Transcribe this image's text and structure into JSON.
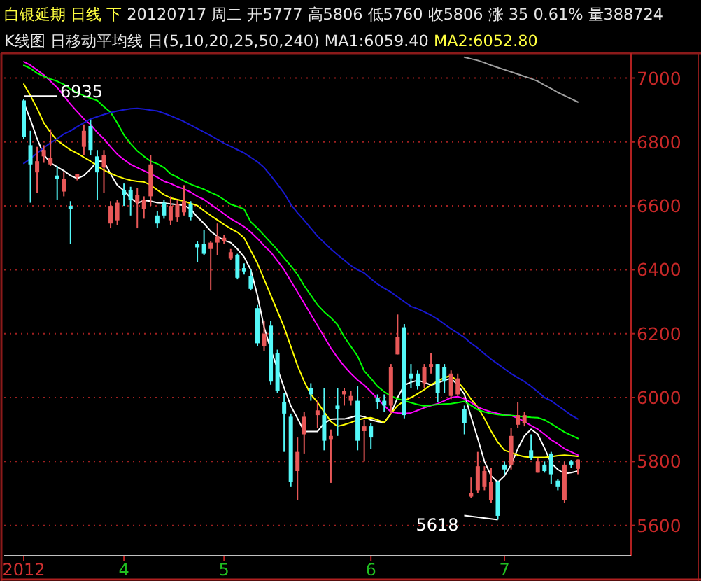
{
  "chart_data": {
    "type": "candlestick",
    "title": "白银延期 日线 下",
    "subtitle": "K线图 日移动平均线 日(5,10,20,25,50,240)",
    "annotations": [
      "20120717 周二 开5777 高5806 低5760 收5806 涨 35 0.61% 量388724",
      "MA1:6059.40",
      "MA2:6052.80",
      {
        "text": "6935",
        "x": "2012",
        "y": 6935
      },
      "5618"
    ],
    "categories": [
      "2012",
      null,
      null,
      null,
      null,
      null,
      null,
      null,
      null,
      null,
      null,
      null,
      null,
      null,
      null,
      "4",
      null,
      null,
      null,
      null,
      null,
      null,
      null,
      null,
      null,
      null,
      null,
      null,
      null,
      null,
      "5",
      null,
      null,
      null,
      null,
      null,
      null,
      null,
      null,
      null,
      null,
      null,
      null,
      null,
      null,
      null,
      null,
      null,
      null,
      null,
      null,
      null,
      "6",
      null,
      null,
      null,
      null,
      null,
      null,
      null,
      null,
      null,
      null,
      null,
      null,
      null,
      null,
      null,
      null,
      null,
      null,
      null,
      "7",
      null,
      null,
      null,
      null,
      null,
      null,
      null,
      null,
      null,
      null,
      null
    ],
    "ohlc": [
      [
        6930,
        6935,
        6810,
        6815
      ],
      [
        6790,
        6835,
        6610,
        6730
      ],
      [
        6705,
        6785,
        6640,
        6740
      ],
      [
        6755,
        6790,
        6735,
        6775
      ],
      [
        6730,
        6840,
        6725,
        6750
      ],
      [
        6695,
        6725,
        6620,
        6685
      ],
      [
        6645,
        6705,
        6630,
        6685
      ],
      [
        6600,
        6615,
        6480,
        6590
      ],
      [
        6690,
        6700,
        6680,
        6700
      ],
      [
        6785,
        6855,
        6760,
        6835
      ],
      [
        6850,
        6870,
        6760,
        6775
      ],
      [
        6755,
        6775,
        6620,
        6705
      ],
      [
        6720,
        6775,
        6640,
        6760
      ],
      [
        6545,
        6615,
        6530,
        6600
      ],
      [
        6555,
        6620,
        6540,
        6610
      ],
      [
        6650,
        6670,
        6600,
        6635
      ],
      [
        6650,
        6660,
        6570,
        6620
      ],
      [
        6610,
        6655,
        6530,
        6635
      ],
      [
        6590,
        6630,
        6560,
        6620
      ],
      [
        6630,
        6760,
        6600,
        6730
      ],
      [
        6570,
        6585,
        6530,
        6545
      ],
      [
        6610,
        6620,
        6560,
        6570
      ],
      [
        6555,
        6630,
        6540,
        6600
      ],
      [
        6565,
        6620,
        6550,
        6605
      ],
      [
        6580,
        6665,
        6570,
        6615
      ],
      [
        6605,
        6615,
        6555,
        6565
      ],
      [
        6480,
        6490,
        6425,
        6470
      ],
      [
        6480,
        6525,
        6445,
        6450
      ],
      [
        6465,
        6490,
        6335,
        6485
      ],
      [
        6485,
        6545,
        6445,
        6505
      ],
      [
        6490,
        6510,
        6480,
        6500
      ],
      [
        6435,
        6465,
        6430,
        6455
      ],
      [
        6445,
        6450,
        6370,
        6375
      ],
      [
        6405,
        6420,
        6385,
        6395
      ],
      [
        6380,
        6400,
        6335,
        6340
      ],
      [
        6280,
        6290,
        6160,
        6170
      ],
      [
        6160,
        6240,
        6145,
        6200
      ],
      [
        6225,
        6240,
        6040,
        6050
      ],
      [
        6140,
        6150,
        6015,
        6020
      ],
      [
        5985,
        6015,
        5830,
        5950
      ],
      [
        5940,
        5950,
        5720,
        5735
      ],
      [
        5770,
        5875,
        5680,
        5830
      ],
      [
        5885,
        5955,
        5825,
        5940
      ],
      [
        6030,
        6045,
        5990,
        6010
      ],
      [
        5945,
        5990,
        5905,
        5960
      ],
      [
        5945,
        6030,
        5835,
        5865
      ],
      [
        5870,
        5900,
        5733,
        5880
      ],
      [
        5975,
        6030,
        5880,
        5965
      ],
      [
        6010,
        6030,
        5975,
        6020
      ],
      [
        5990,
        6020,
        5975,
        6005
      ],
      [
        5990,
        6035,
        5835,
        5865
      ],
      [
        5895,
        5930,
        5800,
        5910
      ],
      [
        5910,
        5920,
        5840,
        5875
      ],
      [
        6000,
        6010,
        5965,
        5985
      ],
      [
        5990,
        6010,
        5955,
        5975
      ],
      [
        5975,
        6105,
        5950,
        6095
      ],
      [
        6135,
        6260,
        6135,
        6190
      ],
      [
        6220,
        6230,
        5935,
        5945
      ],
      [
        6075,
        6105,
        6030,
        6060
      ],
      [
        6075,
        6085,
        6025,
        6035
      ],
      [
        6045,
        6105,
        6030,
        6095
      ],
      [
        6095,
        6140,
        6075,
        6105
      ],
      [
        6105,
        6105,
        5985,
        6015
      ],
      [
        6095,
        6105,
        6015,
        6050
      ],
      [
        6005,
        6085,
        5995,
        6075
      ],
      [
        6010,
        6075,
        6005,
        6060
      ],
      [
        5965,
        5975,
        5885,
        5920
      ],
      [
        5690,
        5750,
        5685,
        5700
      ],
      [
        5710,
        5830,
        5700,
        5785
      ],
      [
        5720,
        5785,
        5710,
        5770
      ],
      [
        5680,
        5780,
        5670,
        5735
      ],
      [
        5735,
        5740,
        5618,
        5630
      ],
      [
        5790,
        5800,
        5760,
        5775
      ],
      [
        5790,
        5905,
        5775,
        5880
      ],
      [
        5915,
        5985,
        5905,
        5945
      ],
      [
        5920,
        5955,
        5910,
        5945
      ],
      [
        5835,
        5885,
        5805,
        5810
      ],
      [
        5765,
        5810,
        5765,
        5800
      ],
      [
        5790,
        5800,
        5765,
        5770
      ],
      [
        5825,
        5830,
        5730,
        5760
      ],
      [
        5740,
        5745,
        5710,
        5720
      ],
      [
        5680,
        5800,
        5670,
        5790
      ],
      [
        5800,
        5805,
        5780,
        5790
      ],
      [
        5777,
        5806,
        5760,
        5806
      ]
    ],
    "series": [
      {
        "type": "line",
        "color": "#ffffff",
        "values": [
          6923,
          6870,
          6810,
          6760,
          6735,
          6722,
          6710,
          6695,
          6686,
          6695,
          6715,
          6740,
          6740,
          6700,
          6665,
          6648,
          6625,
          6609,
          6617,
          6615,
          6610,
          6609,
          6606,
          6604,
          6602,
          6590,
          6565,
          6545,
          6521,
          6505,
          6492,
          6485,
          6465,
          6440,
          6400,
          6320,
          6220,
          6150,
          6090,
          6030,
          5974,
          5935,
          5894,
          5894,
          5894,
          5920,
          5932,
          5933,
          5933,
          5938,
          5944,
          5940,
          5930,
          5925,
          5922,
          5950,
          6000,
          6039,
          6048,
          6054,
          6048,
          6039,
          6046,
          6054,
          6060,
          6040,
          6010,
          5940,
          5872,
          5800,
          5755,
          5735,
          5755,
          5790,
          5840,
          5880,
          5901,
          5885,
          5842,
          5795,
          5775,
          5762,
          5765,
          5770
        ]
      },
      {
        "type": "line",
        "color": "#ffff00",
        "values": [
          6981,
          6945,
          6905,
          6860,
          6830,
          6805,
          6790,
          6775,
          6765,
          6752,
          6740,
          6725,
          6712,
          6702,
          6693,
          6686,
          6680,
          6677,
          6675,
          6665,
          6650,
          6635,
          6625,
          6620,
          6615,
          6608,
          6601,
          6585,
          6570,
          6556,
          6542,
          6529,
          6518,
          6500,
          6460,
          6420,
          6370,
          6320,
          6270,
          6220,
          6160,
          6100,
          6050,
          6010,
          5985,
          5955,
          5925,
          5910,
          5915,
          5922,
          5930,
          5935,
          5937,
          5930,
          5922,
          5950,
          5975,
          5990,
          6000,
          6012,
          6025,
          6040,
          6052,
          6062,
          6069,
          6050,
          6025,
          5995,
          5970,
          5935,
          5895,
          5860,
          5835,
          5828,
          5820,
          5815,
          5813,
          5813,
          5813,
          5815,
          5818,
          5820,
          5818,
          5816
        ]
      },
      {
        "type": "line",
        "color": "#ff00ff",
        "values": [
          7051,
          7040,
          7025,
          7010,
          6990,
          6970,
          6945,
          6918,
          6895,
          6872,
          6855,
          6830,
          6810,
          6785,
          6762,
          6745,
          6730,
          6720,
          6710,
          6700,
          6690,
          6677,
          6670,
          6660,
          6653,
          6643,
          6630,
          6620,
          6605,
          6590,
          6575,
          6560,
          6548,
          6535,
          6518,
          6498,
          6475,
          6455,
          6428,
          6400,
          6365,
          6330,
          6295,
          6260,
          6225,
          6190,
          6155,
          6125,
          6098,
          6075,
          6055,
          6039,
          6018,
          5996,
          5975,
          5955,
          5952,
          5950,
          5952,
          5960,
          5968,
          5975,
          5981,
          5990,
          6000,
          6003,
          5996,
          5985,
          5970,
          5962,
          5955,
          5950,
          5946,
          5944,
          5935,
          5925,
          5912,
          5901,
          5885,
          5868,
          5855,
          5840,
          5830,
          5820
        ]
      },
      {
        "type": "line",
        "color": "#00ff00",
        "values": [
          7040,
          7030,
          7015,
          7005,
          6997,
          6990,
          6980,
          6965,
          6954,
          6945,
          6937,
          6930,
          6910,
          6893,
          6860,
          6822,
          6795,
          6772,
          6755,
          6740,
          6732,
          6720,
          6700,
          6690,
          6678,
          6668,
          6660,
          6652,
          6642,
          6633,
          6620,
          6605,
          6598,
          6590,
          6550,
          6530,
          6508,
          6485,
          6462,
          6437,
          6412,
          6385,
          6350,
          6320,
          6290,
          6268,
          6250,
          6228,
          6190,
          6160,
          6130,
          6083,
          6060,
          6035,
          6018,
          6005,
          5996,
          5990,
          5984,
          5978,
          5974,
          5976,
          5978,
          5980,
          5981,
          5984,
          5988,
          5975,
          5962,
          5955,
          5950,
          5947,
          5945,
          5944,
          5942,
          5940,
          5938,
          5937,
          5930,
          5918,
          5905,
          5892,
          5882,
          5872
        ]
      },
      {
        "type": "line",
        "color": "#1818d0",
        "values": [
          6733,
          6748,
          6765,
          6782,
          6797,
          6810,
          6825,
          6835,
          6848,
          6860,
          6872,
          6879,
          6886,
          6892,
          6897,
          6901,
          6904,
          6905,
          6903,
          6900,
          6897,
          6890,
          6882,
          6873,
          6864,
          6853,
          6842,
          6831,
          6820,
          6808,
          6796,
          6786,
          6776,
          6766,
          6752,
          6738,
          6720,
          6695,
          6668,
          6640,
          6605,
          6578,
          6555,
          6530,
          6505,
          6485,
          6465,
          6447,
          6430,
          6413,
          6400,
          6390,
          6372,
          6355,
          6342,
          6330,
          6315,
          6300,
          6285,
          6278,
          6268,
          6258,
          6245,
          6230,
          6215,
          6202,
          6188,
          6170,
          6155,
          6137,
          6120,
          6105,
          6090,
          6075,
          6062,
          6050,
          6035,
          6018,
          6000,
          5990,
          5975,
          5960,
          5945,
          5933
        ]
      },
      {
        "type": "line",
        "color": "#a0a0a0",
        "values": [
          null,
          null,
          null,
          null,
          null,
          null,
          null,
          null,
          null,
          null,
          null,
          null,
          null,
          null,
          null,
          null,
          null,
          null,
          null,
          null,
          null,
          null,
          null,
          null,
          null,
          null,
          null,
          null,
          null,
          null,
          null,
          null,
          null,
          null,
          null,
          null,
          null,
          null,
          null,
          null,
          null,
          null,
          null,
          null,
          null,
          null,
          null,
          null,
          null,
          null,
          null,
          null,
          null,
          null,
          null,
          null,
          null,
          null,
          null,
          null,
          null,
          null,
          null,
          null,
          null,
          null,
          7065,
          7060,
          7055,
          7048,
          7040,
          7033,
          7026,
          7019,
          7012,
          7005,
          6998,
          6990,
          6978,
          6967,
          6955,
          6945,
          6935,
          6925
        ]
      }
    ],
    "ylim": [
      5505,
      7069
    ],
    "yticks": [
      5600,
      5800,
      6000,
      6200,
      6400,
      6600,
      6800,
      7000
    ],
    "grid": "y"
  }
}
